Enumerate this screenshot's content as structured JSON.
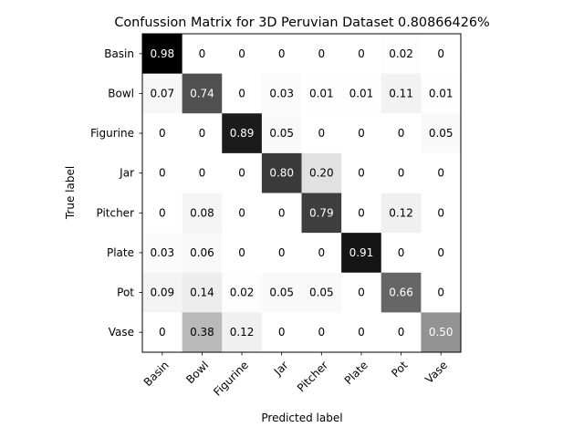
{
  "chart_data": {
    "type": "heatmap",
    "title": "Confussion Matrix for 3D Peruvian Dataset 0.80866426%",
    "xlabel": "Predicted label",
    "ylabel": "True label",
    "row_labels": [
      "Basin",
      "Bowl",
      "Figurine",
      "Jar",
      "Pitcher",
      "Plate",
      "Pot",
      "Vase"
    ],
    "col_labels": [
      "Basin",
      "Bowl",
      "Figurine",
      "Jar",
      "Pitcher",
      "Plate",
      "Pot",
      "Vase"
    ],
    "cell_labels": [
      [
        "0.98",
        "0",
        "0",
        "0",
        "0",
        "0",
        "0.02",
        "0"
      ],
      [
        "0.07",
        "0.74",
        "0",
        "0.03",
        "0.01",
        "0.01",
        "0.11",
        "0.01"
      ],
      [
        "0",
        "0",
        "0.89",
        "0.05",
        "0",
        "0",
        "0",
        "0.05"
      ],
      [
        "0",
        "0",
        "0",
        "0.80",
        "0.20",
        "0",
        "0",
        "0"
      ],
      [
        "0",
        "0.08",
        "0",
        "0",
        "0.79",
        "0",
        "0.12",
        "0"
      ],
      [
        "0.03",
        "0.06",
        "0",
        "0",
        "0",
        "0.91",
        "0",
        "0"
      ],
      [
        "0.09",
        "0.14",
        "0.02",
        "0.05",
        "0.05",
        "0",
        "0.66",
        "0"
      ],
      [
        "0",
        "0.38",
        "0.12",
        "0",
        "0",
        "0",
        "0",
        "0.50"
      ]
    ],
    "values": [
      [
        0.98,
        0,
        0,
        0,
        0,
        0,
        0.02,
        0
      ],
      [
        0.07,
        0.74,
        0,
        0.03,
        0.01,
        0.01,
        0.11,
        0.01
      ],
      [
        0,
        0,
        0.89,
        0.05,
        0,
        0,
        0,
        0.05
      ],
      [
        0,
        0,
        0,
        0.8,
        0.2,
        0,
        0,
        0
      ],
      [
        0,
        0.08,
        0,
        0,
        0.79,
        0,
        0.12,
        0
      ],
      [
        0.03,
        0.06,
        0,
        0,
        0,
        0.91,
        0,
        0
      ],
      [
        0.09,
        0.14,
        0.02,
        0.05,
        0.05,
        0,
        0.66,
        0
      ],
      [
        0,
        0.38,
        0.12,
        0,
        0,
        0,
        0,
        0.5
      ]
    ],
    "colormap": "Greys",
    "value_range": [
      0,
      0.98
    ],
    "grid": false
  }
}
